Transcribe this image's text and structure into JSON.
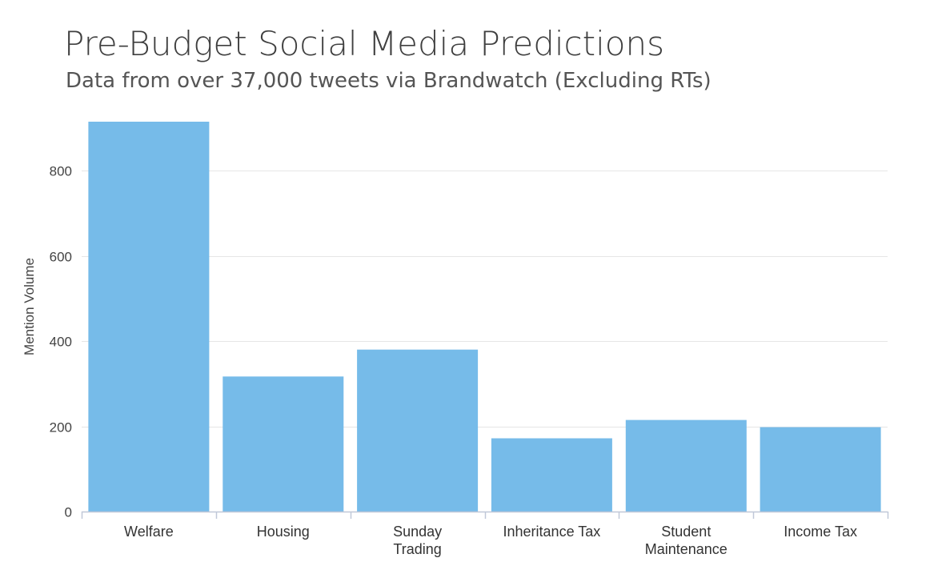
{
  "header": {
    "title": "Pre-Budget Social Media Predictions",
    "subtitle": "Data from over 37,000 tweets via Brandwatch (Excluding RTs)"
  },
  "chart_data": {
    "type": "bar",
    "title": "Pre-Budget Social Media Predictions",
    "subtitle": "Data from over 37,000 tweets via Brandwatch (Excluding RTs)",
    "categories": [
      "Welfare",
      "Housing",
      "Sunday Trading",
      "Inheritance Tax",
      "Student Maintenance",
      "Income Tax"
    ],
    "category_lines": [
      [
        "Welfare"
      ],
      [
        "Housing"
      ],
      [
        "Sunday",
        "Trading"
      ],
      [
        "Inheritance Tax"
      ],
      [
        "Student",
        "Maintenance"
      ],
      [
        "Income Tax"
      ]
    ],
    "values": [
      915,
      317,
      380,
      172,
      215,
      198
    ],
    "xlabel": "",
    "ylabel": "Mention Volume",
    "ylim": [
      0,
      915
    ],
    "yticks": [
      0,
      200,
      400,
      600,
      800
    ],
    "grid": true,
    "legend": "none",
    "bar_color": "#76bbe9",
    "grid_color": "#e6e6e6",
    "axis_color": "#c0c8d8"
  }
}
